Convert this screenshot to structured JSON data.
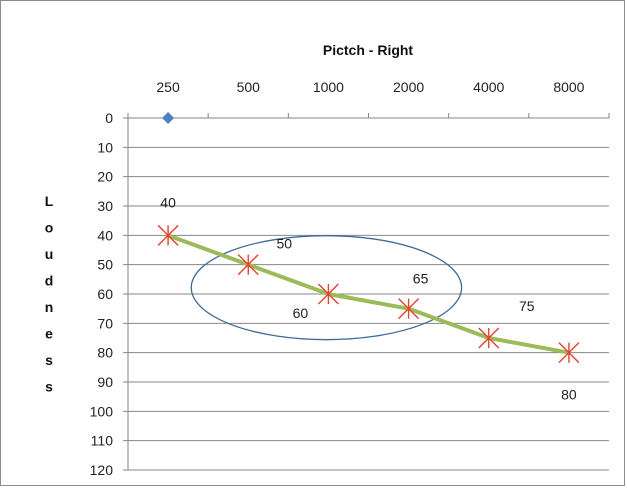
{
  "chart_data": {
    "type": "line",
    "title": "Pictch - Right",
    "xlabel": "",
    "ylabel": "Loudness",
    "categories": [
      "250",
      "500",
      "1000",
      "2000",
      "4000",
      "8000"
    ],
    "x_axis_position": "top",
    "y_reversed": true,
    "ylim": [
      0,
      120
    ],
    "y_ticks": [
      0,
      10,
      20,
      30,
      40,
      50,
      60,
      70,
      80,
      90,
      100,
      110,
      120
    ],
    "grid": true,
    "legend": "none",
    "series": [
      {
        "values": [
          40,
          50,
          60,
          65,
          75,
          80
        ],
        "data_labels": [
          "40",
          "50",
          "60",
          "65",
          "75",
          "80"
        ],
        "line_color": "#9bbb59",
        "marker": "asterisk",
        "marker_color": "#e8412d"
      },
      {
        "values": [
          0,
          null,
          null,
          null,
          null,
          null
        ],
        "marker": "diamond",
        "marker_color": "#4f81bd",
        "line_color": "none"
      }
    ],
    "annotations": [
      {
        "type": "ellipse",
        "color": "#3c6a9b",
        "encloses": [
          "500",
          "1000",
          "2000"
        ]
      }
    ]
  }
}
